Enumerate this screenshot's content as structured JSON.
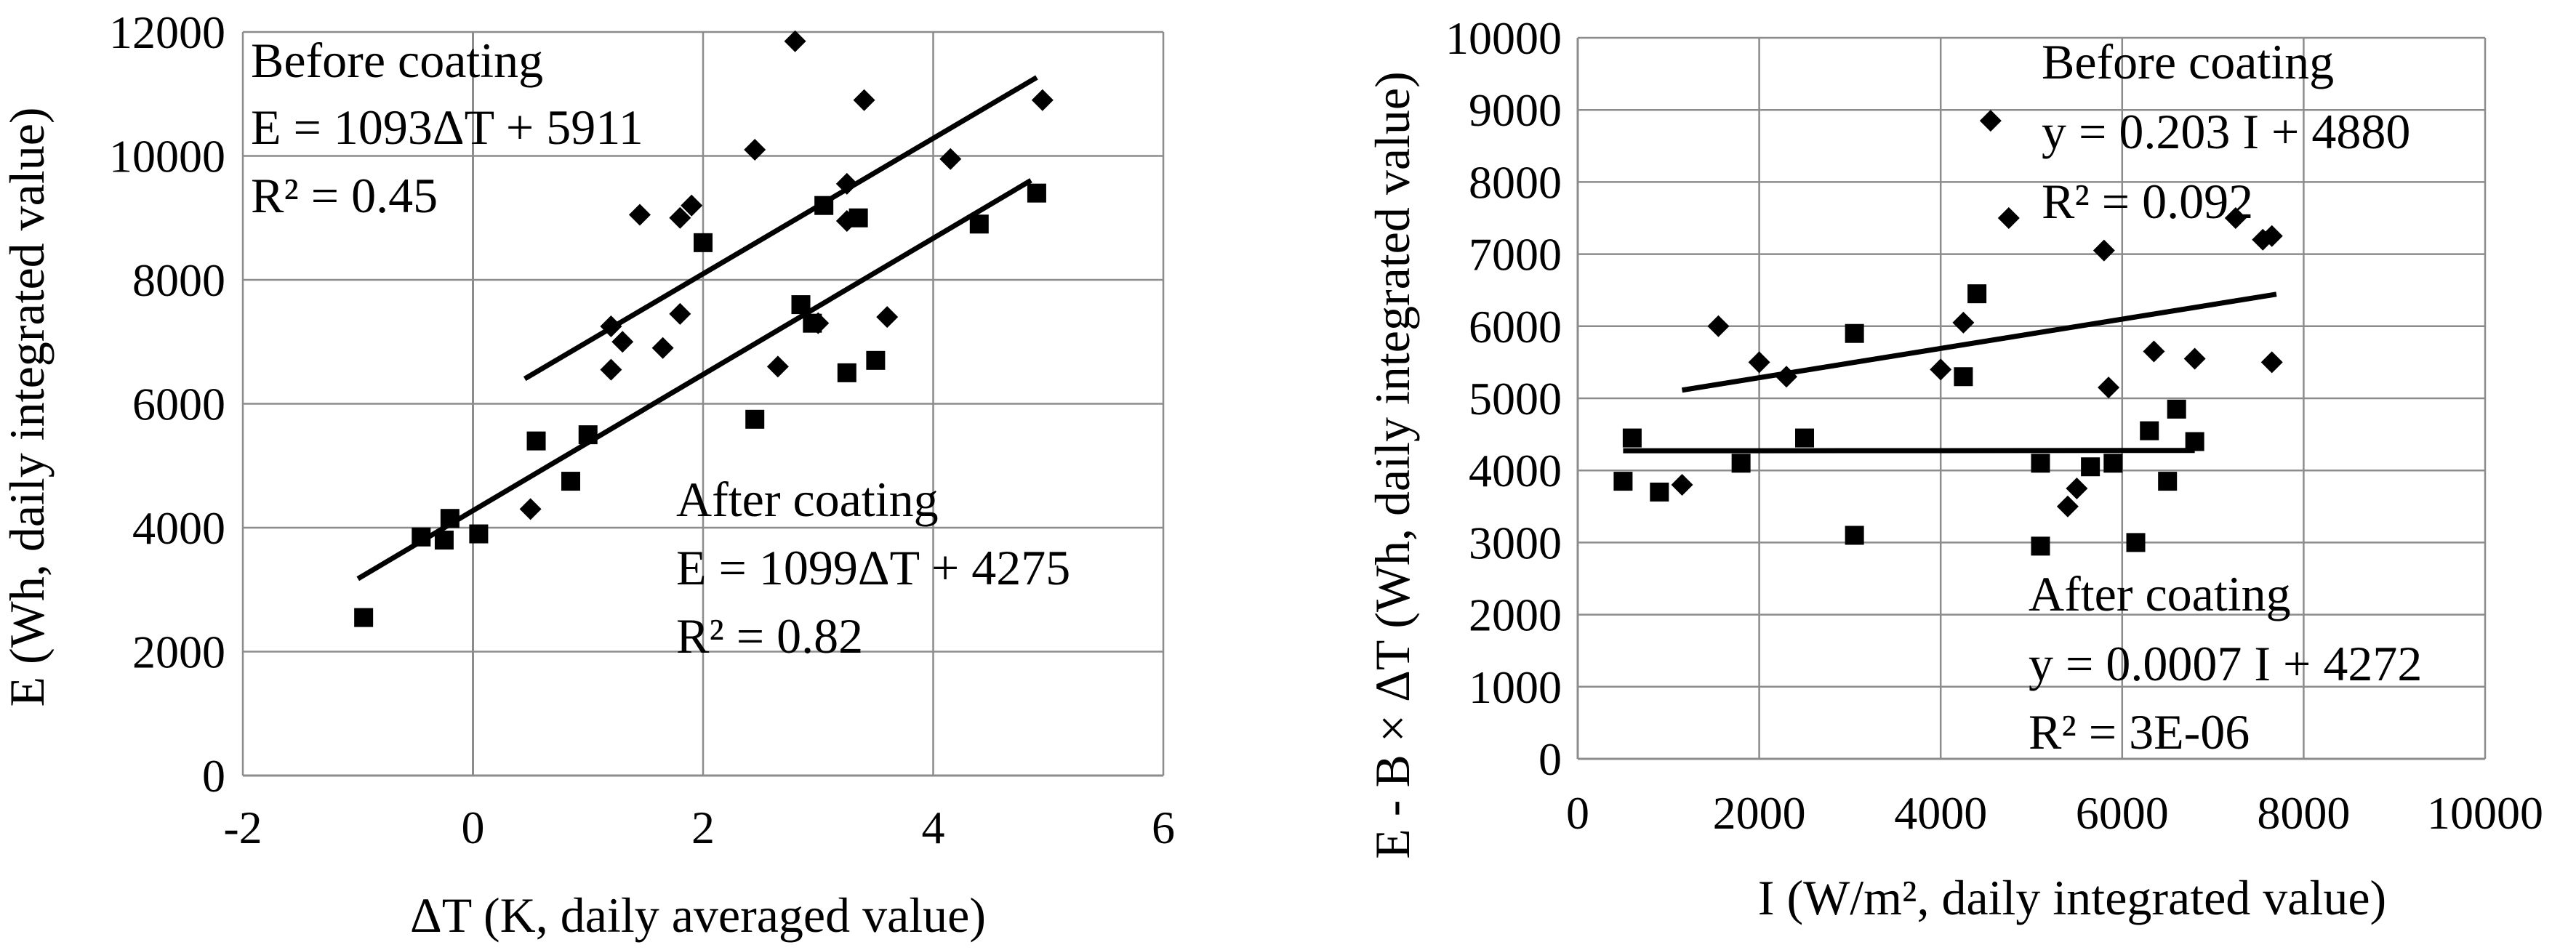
{
  "chart_data": [
    {
      "type": "scatter",
      "xlabel": "ΔT (K, daily averaged value)",
      "ylabel": "E (Wh, daily integrated value)",
      "xlim": [
        -2,
        6
      ],
      "ylim": [
        0,
        12000
      ],
      "xticks": [
        -2,
        0,
        2,
        4,
        6
      ],
      "yticks": [
        0,
        2000,
        4000,
        6000,
        8000,
        10000,
        12000
      ],
      "grid": true,
      "annotations": {
        "before": [
          "Before coating",
          "E = 1093ΔT + 5911",
          "R² = 0.45"
        ],
        "after": [
          "After coating",
          "E = 1099ΔT + 4275",
          "R² = 0.82"
        ]
      },
      "series": [
        {
          "name": "Before coating",
          "marker": "diamond",
          "points": [
            [
              2.8,
              11850
            ],
            [
              3.4,
              10900
            ],
            [
              4.95,
              10900
            ],
            [
              2.45,
              10100
            ],
            [
              4.15,
              9950
            ],
            [
              3.25,
              9550
            ],
            [
              1.9,
              9200
            ],
            [
              1.45,
              9050
            ],
            [
              1.8,
              9000
            ],
            [
              3.25,
              8950
            ],
            [
              1.8,
              7450
            ],
            [
              3.6,
              7400
            ],
            [
              1.2,
              7250
            ],
            [
              1.3,
              7000
            ],
            [
              1.65,
              6900
            ],
            [
              3.0,
              7300
            ],
            [
              1.2,
              6550
            ],
            [
              2.65,
              6600
            ],
            [
              0.5,
              4300
            ]
          ],
          "trendline": {
            "slope": 1093,
            "intercept": 5911,
            "x_range": [
              0.45,
              4.9
            ]
          }
        },
        {
          "name": "After coating",
          "marker": "square",
          "points": [
            [
              3.05,
              9200
            ],
            [
              4.9,
              9400
            ],
            [
              4.4,
              8900
            ],
            [
              3.35,
              9000
            ],
            [
              2.0,
              8600
            ],
            [
              2.85,
              7600
            ],
            [
              2.95,
              7300
            ],
            [
              3.5,
              6700
            ],
            [
              3.25,
              6500
            ],
            [
              2.45,
              5750
            ],
            [
              0.55,
              5400
            ],
            [
              1.0,
              5500
            ],
            [
              0.85,
              4750
            ],
            [
              -0.2,
              4150
            ],
            [
              -0.45,
              3850
            ],
            [
              -0.25,
              3800
            ],
            [
              0.05,
              3900
            ],
            [
              -0.95,
              2550
            ]
          ],
          "trendline": {
            "slope": 1099,
            "intercept": 4275,
            "x_range": [
              -1.0,
              4.85
            ]
          }
        }
      ]
    },
    {
      "type": "scatter",
      "xlabel": "I (W/m², daily integrated value)",
      "ylabel": "E - B × ΔT (Wh, daily integrated value)",
      "xlim": [
        0,
        10000
      ],
      "ylim": [
        0,
        10000
      ],
      "xticks": [
        0,
        2000,
        4000,
        6000,
        8000,
        10000
      ],
      "yticks": [
        0,
        1000,
        2000,
        3000,
        4000,
        5000,
        6000,
        7000,
        8000,
        9000,
        10000
      ],
      "grid": true,
      "annotations": {
        "before": [
          "Before coating",
          "y = 0.203 I + 4880",
          "R² = 0.092"
        ],
        "after": [
          "After coating",
          "y = 0.0007 I + 4272",
          "R² = 3E-06"
        ]
      },
      "series": [
        {
          "name": "Before coating",
          "marker": "diamond",
          "points": [
            [
              4550,
              8850
            ],
            [
              4750,
              7500
            ],
            [
              7250,
              7500
            ],
            [
              7550,
              7200
            ],
            [
              7650,
              7250
            ],
            [
              5800,
              7050
            ],
            [
              1550,
              6000
            ],
            [
              4250,
              6050
            ],
            [
              2000,
              5500
            ],
            [
              2300,
              5300
            ],
            [
              4000,
              5400
            ],
            [
              6350,
              5650
            ],
            [
              6800,
              5550
            ],
            [
              7650,
              5500
            ],
            [
              5850,
              5150
            ],
            [
              1150,
              3800
            ],
            [
              5500,
              3750
            ],
            [
              5400,
              3500
            ]
          ],
          "trendline": {
            "slope": 0.203,
            "intercept": 4880,
            "x_range": [
              1150,
              7700
            ]
          }
        },
        {
          "name": "After coating",
          "marker": "square",
          "points": [
            [
              4400,
              6450
            ],
            [
              3050,
              5900
            ],
            [
              4250,
              5300
            ],
            [
              6600,
              4850
            ],
            [
              6300,
              4550
            ],
            [
              600,
              4450
            ],
            [
              2500,
              4450
            ],
            [
              6800,
              4400
            ],
            [
              500,
              3850
            ],
            [
              1800,
              4100
            ],
            [
              5100,
              4100
            ],
            [
              5650,
              4050
            ],
            [
              5900,
              4100
            ],
            [
              6500,
              3850
            ],
            [
              900,
              3700
            ],
            [
              3050,
              3100
            ],
            [
              5100,
              2950
            ],
            [
              6150,
              3000
            ]
          ],
          "trendline": {
            "slope": 0.0007,
            "intercept": 4272,
            "x_range": [
              500,
              6800
            ]
          }
        }
      ]
    }
  ]
}
